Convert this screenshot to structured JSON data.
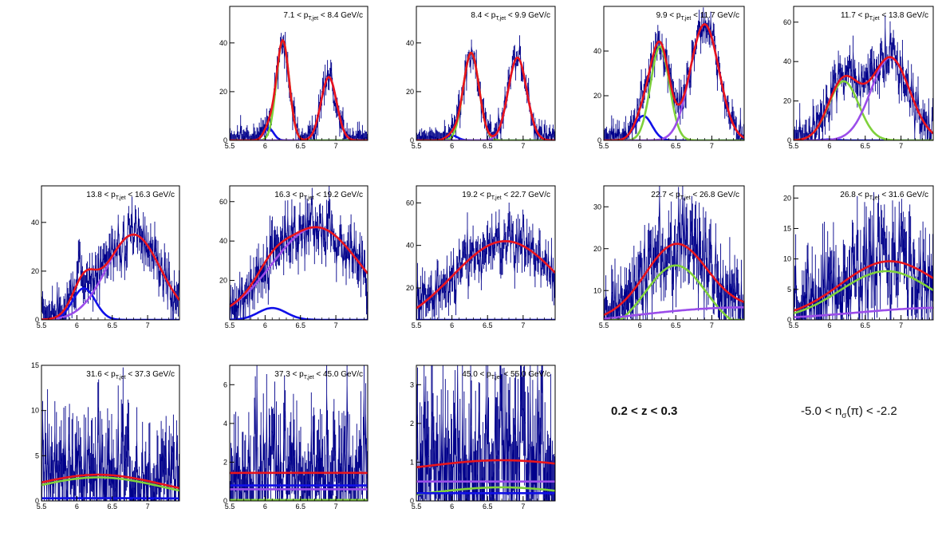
{
  "labels": {
    "z_range": "0.2 < z < 0.3",
    "nsigma_prefix": "-5.0 < n",
    "nsigma_sub": "σ",
    "nsigma_suffix": "(π) < -2.2"
  },
  "colors": {
    "data": "#00008B",
    "total": "#e8141c",
    "pion": "#7fd13b",
    "kaon_proton": "#9b4dea",
    "electron": "#1010e8",
    "axis": "#000000"
  },
  "chart_data": [
    {
      "type": "line",
      "title": "7.1 < p_T,jet < 8.4 GeV/c",
      "xlim": [
        5.5,
        7.45
      ],
      "ylim": [
        0,
        55
      ],
      "xticks": [
        5.5,
        6,
        6.5,
        7
      ],
      "yticks": [
        0,
        20,
        40
      ],
      "noise": 3,
      "components": [
        {
          "name": "",
          "color": "#1010e8",
          "amp": 5,
          "mu": 6.05,
          "sigma": 0.07
        },
        {
          "name": "",
          "color": "#7fd13b",
          "amp": 41,
          "mu": 6.25,
          "sigma": 0.09
        },
        {
          "name": "",
          "color": "#9b4dea",
          "amp": 26,
          "mu": 6.9,
          "sigma": 0.11
        }
      ]
    },
    {
      "type": "line",
      "title": "8.4 < p_T,jet < 9.9 GeV/c",
      "xlim": [
        5.5,
        7.45
      ],
      "ylim": [
        0,
        55
      ],
      "xticks": [
        5.5,
        6,
        6.5,
        7
      ],
      "yticks": [
        0,
        20,
        40
      ],
      "noise": 3,
      "components": [
        {
          "name": "",
          "color": "#1010e8",
          "amp": 2,
          "mu": 6.0,
          "sigma": 0.08
        },
        {
          "name": "",
          "color": "#7fd13b",
          "amp": 36,
          "mu": 6.27,
          "sigma": 0.11
        },
        {
          "name": "",
          "color": "#9b4dea",
          "amp": 34,
          "mu": 6.92,
          "sigma": 0.13
        }
      ]
    },
    {
      "type": "line",
      "title": "9.9 < p_T,jet < 11.7 GeV/c",
      "xlim": [
        5.5,
        7.45
      ],
      "ylim": [
        0,
        60
      ],
      "xticks": [
        5.5,
        6,
        6.5,
        7
      ],
      "yticks": [
        0,
        20,
        40
      ],
      "noise": 4,
      "components": [
        {
          "name": "",
          "color": "#1010e8",
          "amp": 11,
          "mu": 6.05,
          "sigma": 0.12
        },
        {
          "name": "",
          "color": "#7fd13b",
          "amp": 42,
          "mu": 6.28,
          "sigma": 0.13
        },
        {
          "name": "",
          "color": "#9b4dea",
          "amp": 52,
          "mu": 6.9,
          "sigma": 0.2
        }
      ]
    },
    {
      "type": "line",
      "title": "11.7 < p_T,jet < 13.8 GeV/c",
      "xlim": [
        5.5,
        7.45
      ],
      "ylim": [
        0,
        68
      ],
      "xticks": [
        5.5,
        6,
        6.5,
        7
      ],
      "yticks": [
        0,
        20,
        40,
        60
      ],
      "noise": 6,
      "components": [
        {
          "name": "",
          "color": "#1010e8",
          "amp": 0.5,
          "mu": 6.0,
          "sigma": 0.1
        },
        {
          "name": "",
          "color": "#7fd13b",
          "amp": 30,
          "mu": 6.2,
          "sigma": 0.21
        },
        {
          "name": "",
          "color": "#9b4dea",
          "amp": 42,
          "mu": 6.85,
          "sigma": 0.27
        }
      ]
    },
    {
      "type": "line",
      "title": "13.8 < p_T,jet < 16.3 GeV/c",
      "xlim": [
        5.5,
        7.45
      ],
      "ylim": [
        0,
        55
      ],
      "xticks": [
        5.5,
        6,
        6.5,
        7
      ],
      "yticks": [
        0,
        20,
        40
      ],
      "noise": 5,
      "components": [
        {
          "name": "",
          "color": "#1010e8",
          "amp": 13,
          "mu": 6.1,
          "sigma": 0.16
        },
        {
          "name": "",
          "color": "#9b4dea",
          "amp": 35,
          "mu": 6.8,
          "sigma": 0.38
        }
      ]
    },
    {
      "type": "line",
      "title": "16.3 < p_T,jet < 19.2 GeV/c",
      "xlim": [
        5.5,
        7.45
      ],
      "ylim": [
        0,
        68
      ],
      "xticks": [
        5.5,
        6,
        6.5,
        7
      ],
      "yticks": [
        20,
        40,
        60
      ],
      "noise": 7,
      "components": [
        {
          "name": "",
          "color": "#1010e8",
          "amp": 6,
          "mu": 6.1,
          "sigma": 0.2
        },
        {
          "name": "",
          "color": "#9b4dea",
          "amp": 47,
          "mu": 6.72,
          "sigma": 0.62
        }
      ]
    },
    {
      "type": "line",
      "title": "19.2 < p_T,jet < 22.7 GeV/c",
      "xlim": [
        5.5,
        7.45
      ],
      "ylim": [
        5,
        68
      ],
      "xticks": [
        5.5,
        6,
        6.5,
        7
      ],
      "yticks": [
        20,
        40,
        60
      ],
      "noise": 6,
      "components": [
        {
          "name": "",
          "color": "#1010e8",
          "amp": 0,
          "mu": 6.0,
          "sigma": 0.2
        },
        {
          "name": "",
          "color": "#9b4dea",
          "amp": 42,
          "mu": 6.75,
          "sigma": 0.75
        }
      ]
    },
    {
      "type": "line",
      "title": "22.7 < p_T,jet < 26.8 GeV/c",
      "xlim": [
        5.5,
        7.45
      ],
      "ylim": [
        3,
        35
      ],
      "xticks": [
        5.5,
        6,
        6.5,
        7
      ],
      "yticks": [
        10,
        20,
        30
      ],
      "noise": 5,
      "components": [
        {
          "name": "",
          "color": "#7fd13b",
          "amp": 16,
          "mu": 6.5,
          "sigma": 0.42
        },
        {
          "name": "",
          "color": "#9b4dea",
          "amp": 6,
          "mu": 7.5,
          "sigma": 1.8
        }
      ]
    },
    {
      "type": "line",
      "title": "26.8 < p_T,jet < 31.6 GeV/c",
      "xlim": [
        5.5,
        7.45
      ],
      "ylim": [
        0,
        22
      ],
      "xticks": [
        5.5,
        6,
        6.5,
        7
      ],
      "yticks": [
        0,
        5,
        10,
        15,
        20
      ],
      "noise": 4,
      "components": [
        {
          "name": "",
          "color": "#7fd13b",
          "amp": 8,
          "mu": 6.8,
          "sigma": 0.65
        },
        {
          "name": "",
          "color": "#9b4dea",
          "amp": 2,
          "mu": 7.6,
          "sigma": 1.2
        }
      ]
    },
    {
      "type": "line",
      "title": "31.6 < p_T,jet < 37.3 GeV/c",
      "xlim": [
        5.5,
        7.45
      ],
      "ylim": [
        0,
        15
      ],
      "xticks": [
        5.5,
        6,
        6.5,
        7
      ],
      "yticks": [
        0,
        5,
        10,
        15
      ],
      "noise": 3,
      "components": [
        {
          "name": "",
          "color": "#7fd13b",
          "amp": 2.6,
          "mu": 6.3,
          "sigma": 0.9
        },
        {
          "name": "",
          "color": "#1010e8",
          "amp": 0.3,
          "mu": 6.3,
          "sigma": 3
        }
      ]
    },
    {
      "type": "line",
      "title": "37.3 < p_T,jet < 45.0 GeV/c",
      "xlim": [
        5.5,
        7.45
      ],
      "ylim": [
        0,
        7
      ],
      "xticks": [
        5.5,
        6,
        6.5,
        7
      ],
      "yticks": [
        0,
        2,
        4,
        6
      ],
      "noise": 1.6,
      "components": [
        {
          "name": "",
          "color": "#7fd13b",
          "amp": 0.05,
          "mu": 6.5,
          "sigma": 3
        },
        {
          "name": "",
          "color": "#9b4dea",
          "amp": 0.6,
          "mu": 6.5,
          "sigma": 30
        },
        {
          "name": "",
          "color": "#1010e8",
          "amp": 0.8,
          "mu": 6.5,
          "sigma": 30
        }
      ]
    },
    {
      "type": "line",
      "title": "45.0 < p_T,jet < 55.0 GeV/c",
      "xlim": [
        5.5,
        7.45
      ],
      "ylim": [
        0,
        3.5
      ],
      "xticks": [
        5.5,
        6,
        6.5,
        7
      ],
      "yticks": [
        0,
        1,
        2,
        3
      ],
      "noise": 1.2,
      "components": [
        {
          "name": "",
          "color": "#7fd13b",
          "amp": 0.35,
          "mu": 6.7,
          "sigma": 1
        },
        {
          "name": "",
          "color": "#1010e8",
          "amp": 0.2,
          "mu": 6.5,
          "sigma": 30
        },
        {
          "name": "",
          "color": "#9b4dea",
          "amp": 0.5,
          "mu": 6.5,
          "sigma": 30
        }
      ]
    }
  ]
}
